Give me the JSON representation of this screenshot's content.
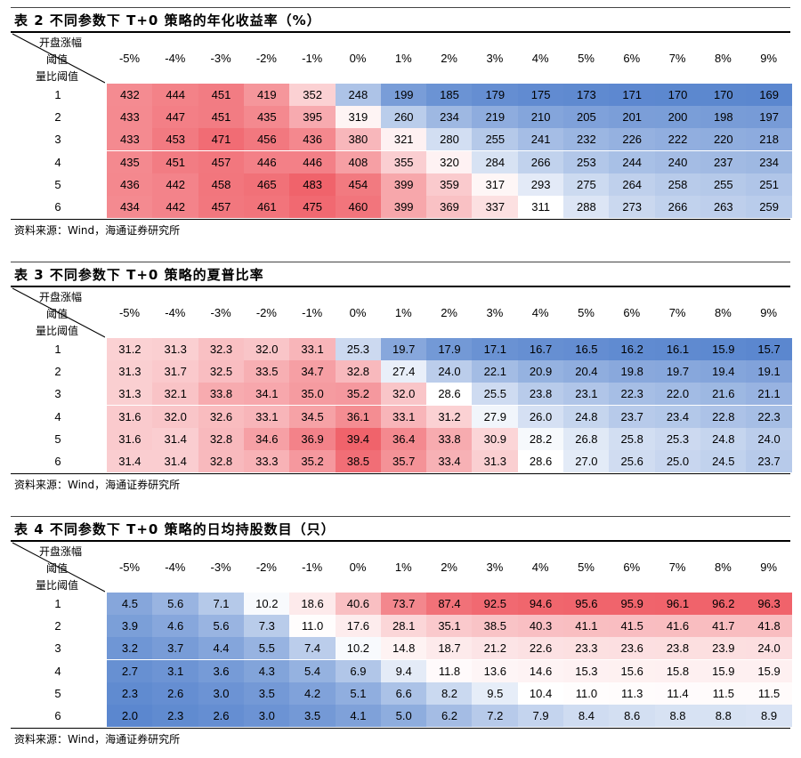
{
  "source": "资料来源：Wind，海通证券研究所",
  "corner": {
    "line1": "开盘涨幅",
    "line2": "阈值",
    "line3": "量比阈值"
  },
  "columns": [
    "-5%",
    "-4%",
    "-3%",
    "-2%",
    "-1%",
    "0%",
    "1%",
    "2%",
    "3%",
    "4%",
    "5%",
    "6%",
    "7%",
    "8%",
    "9%"
  ],
  "rows": [
    "1",
    "2",
    "3",
    "4",
    "5",
    "6"
  ],
  "tables": [
    {
      "title": "表 2  不同参数下 T+0 策略的年化收益率（%）",
      "color_mode": "high-red",
      "values": [
        [
          "432",
          "444",
          "451",
          "419",
          "352",
          "248",
          "199",
          "185",
          "179",
          "175",
          "173",
          "171",
          "170",
          "170",
          "169"
        ],
        [
          "433",
          "447",
          "451",
          "435",
          "395",
          "319",
          "260",
          "234",
          "219",
          "210",
          "205",
          "201",
          "200",
          "198",
          "197"
        ],
        [
          "433",
          "453",
          "471",
          "456",
          "436",
          "380",
          "321",
          "280",
          "255",
          "241",
          "232",
          "226",
          "222",
          "220",
          "218"
        ],
        [
          "435",
          "451",
          "457",
          "446",
          "446",
          "408",
          "355",
          "320",
          "284",
          "266",
          "253",
          "244",
          "240",
          "237",
          "234"
        ],
        [
          "436",
          "442",
          "458",
          "465",
          "483",
          "454",
          "399",
          "359",
          "317",
          "293",
          "275",
          "264",
          "258",
          "255",
          "251"
        ],
        [
          "434",
          "442",
          "457",
          "461",
          "475",
          "460",
          "399",
          "369",
          "337",
          "311",
          "288",
          "273",
          "266",
          "263",
          "259"
        ]
      ]
    },
    {
      "title": "表 3  不同参数下 T+0 策略的夏普比率",
      "color_mode": "high-red",
      "values": [
        [
          "31.2",
          "31.3",
          "32.3",
          "32.0",
          "33.1",
          "25.3",
          "19.7",
          "17.9",
          "17.1",
          "16.7",
          "16.5",
          "16.2",
          "16.1",
          "15.9",
          "15.7"
        ],
        [
          "31.3",
          "31.7",
          "32.5",
          "33.5",
          "34.7",
          "32.8",
          "27.4",
          "24.0",
          "22.1",
          "20.9",
          "20.4",
          "19.8",
          "19.7",
          "19.4",
          "19.1"
        ],
        [
          "31.3",
          "32.1",
          "33.8",
          "34.1",
          "35.0",
          "35.2",
          "32.0",
          "28.6",
          "25.5",
          "23.8",
          "23.1",
          "22.3",
          "22.0",
          "21.6",
          "21.1"
        ],
        [
          "31.6",
          "32.0",
          "32.6",
          "33.1",
          "34.5",
          "36.1",
          "33.1",
          "31.2",
          "27.9",
          "26.0",
          "24.8",
          "23.7",
          "23.4",
          "22.8",
          "22.3"
        ],
        [
          "31.6",
          "31.4",
          "32.8",
          "34.6",
          "36.9",
          "39.4",
          "36.4",
          "33.8",
          "30.9",
          "28.2",
          "26.8",
          "25.8",
          "25.3",
          "24.8",
          "24.0"
        ],
        [
          "31.4",
          "31.4",
          "32.8",
          "33.3",
          "35.2",
          "38.5",
          "35.7",
          "33.4",
          "31.3",
          "28.6",
          "27.0",
          "25.6",
          "25.0",
          "24.5",
          "23.7"
        ]
      ]
    },
    {
      "title": "表 4  不同参数下 T+0 策略的日均持股数目（只）",
      "color_mode": "high-red",
      "values": [
        [
          "4.5",
          "5.6",
          "7.1",
          "10.2",
          "18.6",
          "40.6",
          "73.7",
          "87.4",
          "92.5",
          "94.6",
          "95.6",
          "95.9",
          "96.1",
          "96.2",
          "96.3"
        ],
        [
          "3.9",
          "4.6",
          "5.6",
          "7.3",
          "11.0",
          "17.6",
          "28.1",
          "35.1",
          "38.5",
          "40.3",
          "41.1",
          "41.5",
          "41.6",
          "41.7",
          "41.8"
        ],
        [
          "3.2",
          "3.7",
          "4.4",
          "5.5",
          "7.4",
          "10.2",
          "14.8",
          "18.7",
          "21.2",
          "22.6",
          "23.3",
          "23.6",
          "23.8",
          "23.9",
          "24.0"
        ],
        [
          "2.7",
          "3.1",
          "3.6",
          "4.3",
          "5.4",
          "6.9",
          "9.4",
          "11.8",
          "13.6",
          "14.6",
          "15.3",
          "15.6",
          "15.8",
          "15.9",
          "15.9"
        ],
        [
          "2.3",
          "2.6",
          "3.0",
          "3.5",
          "4.2",
          "5.1",
          "6.6",
          "8.2",
          "9.5",
          "10.4",
          "11.0",
          "11.3",
          "11.4",
          "11.5",
          "11.5"
        ],
        [
          "2.0",
          "2.3",
          "2.6",
          "3.0",
          "3.5",
          "4.1",
          "5.0",
          "6.2",
          "7.2",
          "7.9",
          "8.4",
          "8.6",
          "8.8",
          "8.8",
          "8.9"
        ]
      ]
    }
  ],
  "colors": {
    "high": "#f0636b",
    "mid": "#ffffff",
    "low": "#5b87cf"
  }
}
